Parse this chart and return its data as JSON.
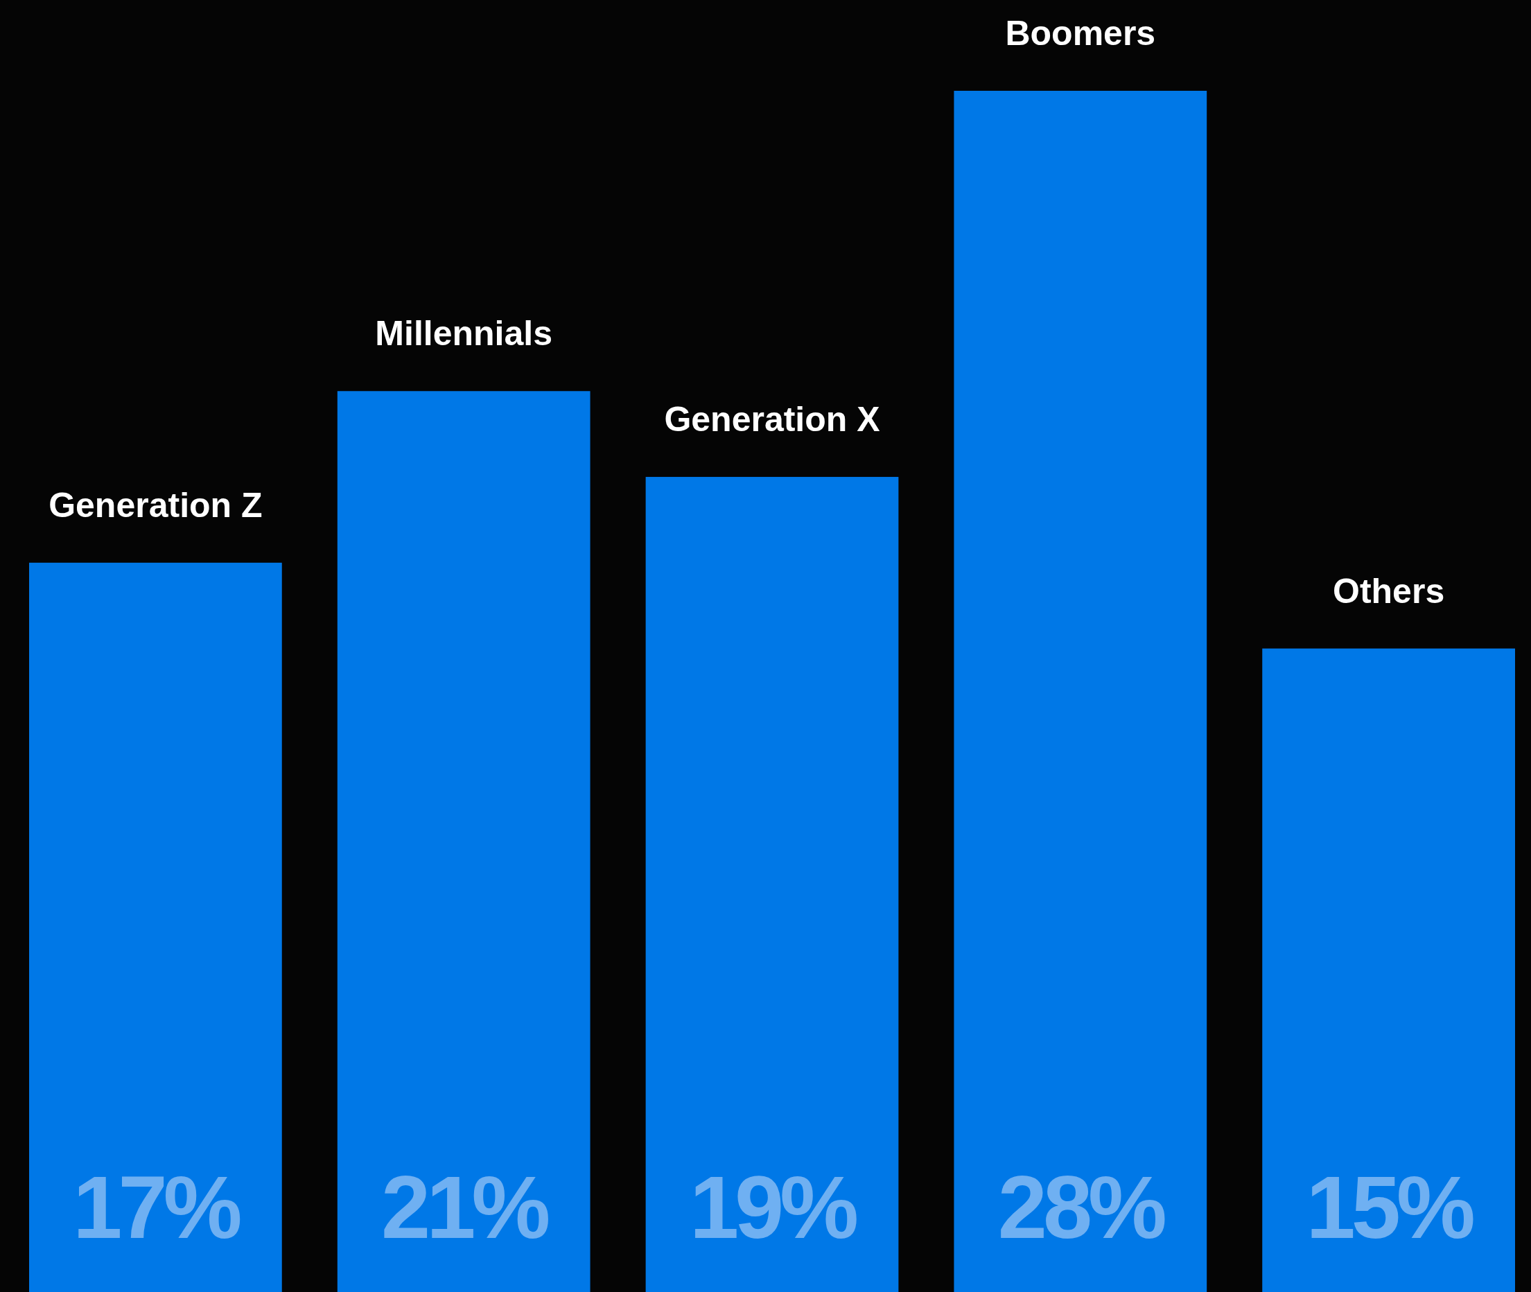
{
  "chart_data": {
    "type": "bar",
    "categories": [
      "Generation Z",
      "Millennials",
      "Generation X",
      "Boomers",
      "Others"
    ],
    "values": [
      17,
      21,
      19,
      28,
      15
    ],
    "value_labels": [
      "17%",
      "21%",
      "19%",
      "28%",
      "15%"
    ],
    "color": "#0078e7"
  }
}
